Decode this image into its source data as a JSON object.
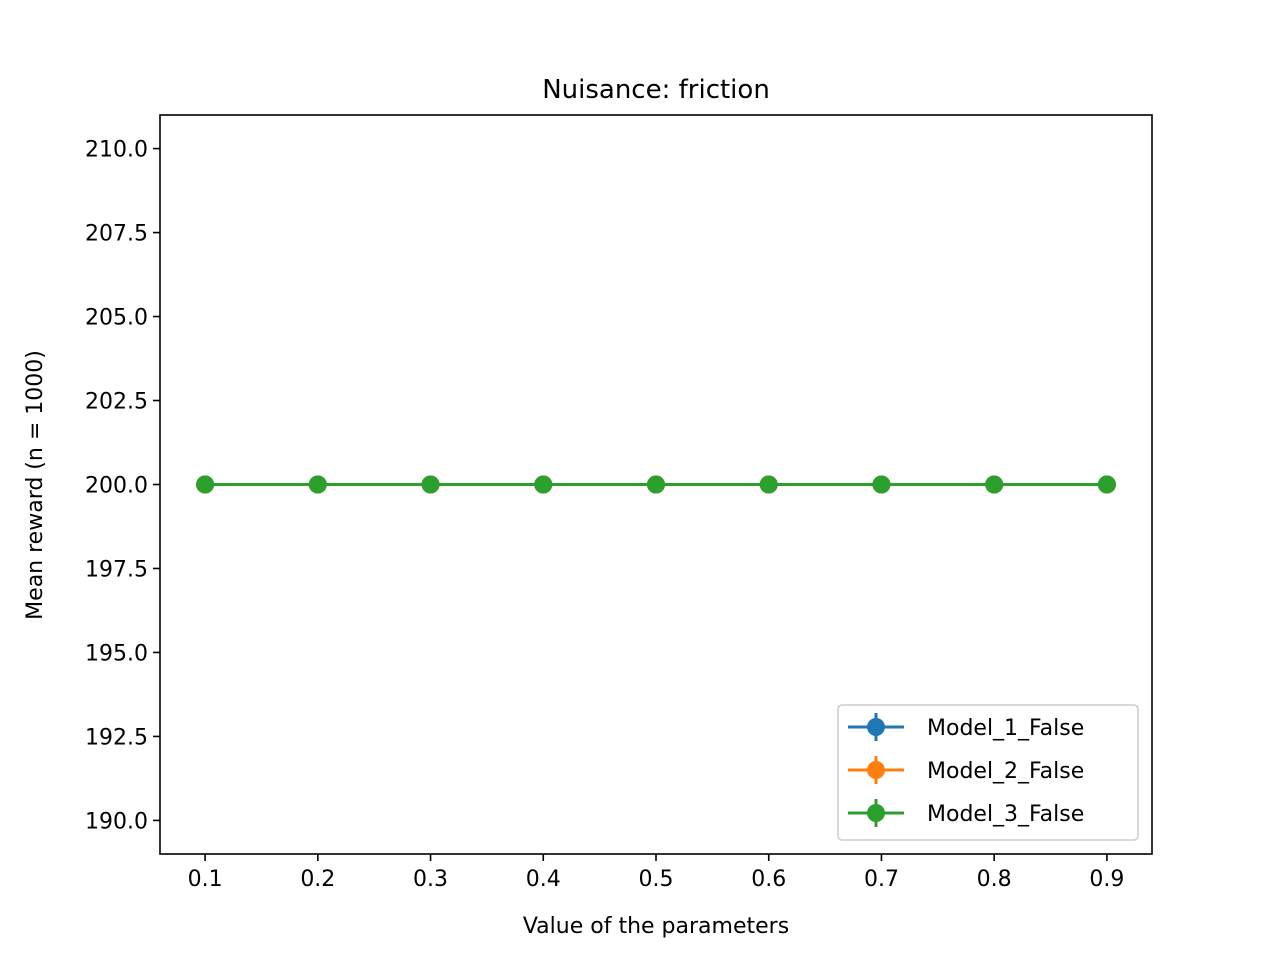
{
  "chart_data": {
    "type": "line",
    "title": "Nuisance: friction",
    "xlabel": "Value of the parameters",
    "ylabel": "Mean reward (n = 1000)",
    "x": [
      0.1,
      0.2,
      0.3,
      0.4,
      0.5,
      0.6,
      0.7,
      0.8,
      0.9
    ],
    "xlim": [
      0.06,
      0.94
    ],
    "ylim": [
      189.0,
      211.0
    ],
    "xticks": [
      "0.1",
      "0.2",
      "0.3",
      "0.4",
      "0.5",
      "0.6",
      "0.7",
      "0.8",
      "0.9"
    ],
    "yticks": [
      "190.0",
      "192.5",
      "195.0",
      "197.5",
      "200.0",
      "202.5",
      "205.0",
      "207.5",
      "210.0"
    ],
    "grid": false,
    "legend_position": "lower right",
    "series": [
      {
        "name": "Model_1_False",
        "color": "#1f77b4",
        "marker": "circle",
        "error_bars": true,
        "values": [
          200,
          200,
          200,
          200,
          200,
          200,
          200,
          200,
          200
        ]
      },
      {
        "name": "Model_2_False",
        "color": "#ff7f0e",
        "marker": "circle",
        "error_bars": true,
        "values": [
          200,
          200,
          200,
          200,
          200,
          200,
          200,
          200,
          200
        ]
      },
      {
        "name": "Model_3_False",
        "color": "#2ca02c",
        "marker": "circle",
        "error_bars": true,
        "values": [
          200,
          200,
          200,
          200,
          200,
          200,
          200,
          200,
          200
        ]
      }
    ]
  }
}
